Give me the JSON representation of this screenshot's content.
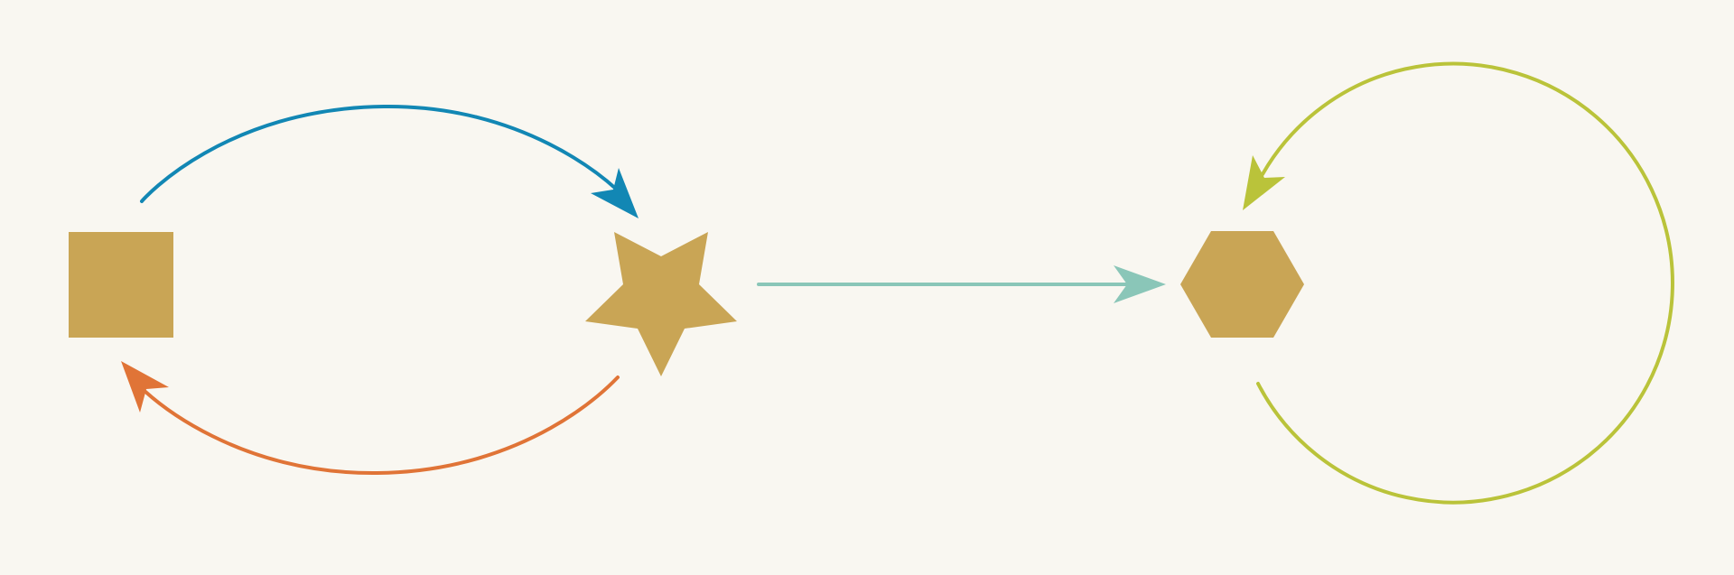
{
  "diagram": {
    "background": "#f9f7f1",
    "nodes": [
      {
        "id": "square",
        "shape": "square",
        "color": "#c9a555"
      },
      {
        "id": "star",
        "shape": "star",
        "color": "#c9a555"
      },
      {
        "id": "hexagon",
        "shape": "hexagon",
        "color": "#c9a555"
      }
    ],
    "edges": [
      {
        "id": "square-to-star",
        "from": "square",
        "to": "star",
        "style": "curved",
        "color": "#1287b4"
      },
      {
        "id": "star-to-square",
        "from": "star",
        "to": "square",
        "style": "curved",
        "color": "#e07437"
      },
      {
        "id": "star-to-hexagon",
        "from": "star",
        "to": "hexagon",
        "style": "straight",
        "color": "#8ac6b8"
      },
      {
        "id": "hexagon-self-loop",
        "from": "hexagon",
        "to": "hexagon",
        "style": "loop",
        "color": "#bac33a"
      }
    ]
  }
}
